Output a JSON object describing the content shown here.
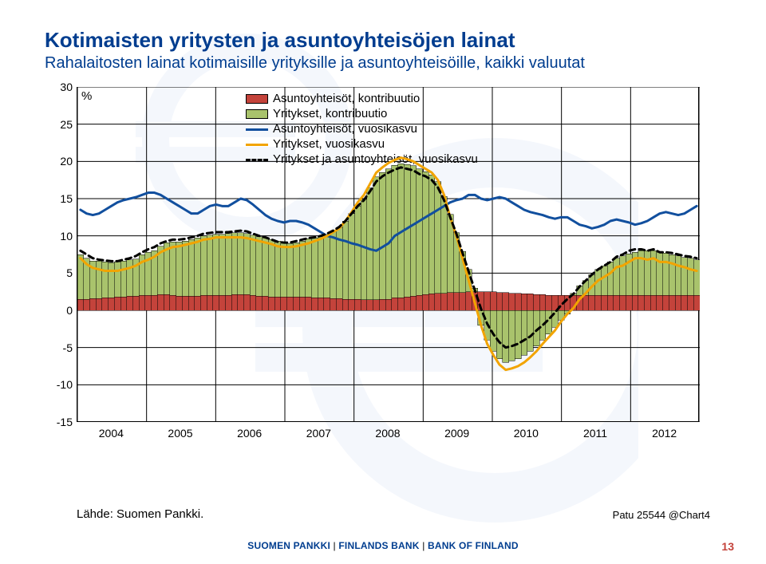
{
  "title": "Kotimaisten yritysten ja asuntoyhteisöjen lainat",
  "subtitle": "Rahalaitosten lainat kotimaisille yrityksille ja asuntoyhteisöille, kaikki valuutat",
  "unit": "%",
  "chart": {
    "type": "combo-stackedbar-line",
    "ylim": [
      -15,
      30
    ],
    "ytick_step": 5,
    "xlabels": [
      "2004",
      "2005",
      "2006",
      "2007",
      "2008",
      "2009",
      "2010",
      "2011",
      "2012"
    ],
    "background_color": "#ffffff",
    "grid_color": "#000000",
    "series_bar": [
      {
        "name": "Asuntoyhteisöt, kontribuutio",
        "color": "#c4433b",
        "border": "#000000",
        "values": [
          1.5,
          1.5,
          1.6,
          1.6,
          1.7,
          1.7,
          1.8,
          1.8,
          1.9,
          1.9,
          2.0,
          2.0,
          2.0,
          2.1,
          2.1,
          2.0,
          1.9,
          1.9,
          1.9,
          1.9,
          2.0,
          2.0,
          2.0,
          2.0,
          2.0,
          2.1,
          2.1,
          2.1,
          2.0,
          1.9,
          1.9,
          1.8,
          1.8,
          1.8,
          1.8,
          1.8,
          1.8,
          1.8,
          1.7,
          1.7,
          1.7,
          1.6,
          1.6,
          1.5,
          1.5,
          1.5,
          1.4,
          1.4,
          1.4,
          1.5,
          1.5,
          1.7,
          1.7,
          1.8,
          1.9,
          2.0,
          2.1,
          2.2,
          2.3,
          2.3,
          2.4,
          2.4,
          2.4,
          2.5,
          2.5,
          2.5,
          2.5,
          2.5,
          2.4,
          2.4,
          2.3,
          2.3,
          2.2,
          2.2,
          2.1,
          2.1,
          2.0,
          2.0,
          2.0,
          2.0,
          2.0,
          2.0,
          2.0,
          2.0,
          2.0,
          2.0,
          2.0,
          2.0,
          2.0,
          2.0,
          2.0,
          2.0,
          2.0,
          2.0,
          2.0,
          2.0,
          2.0,
          2.0,
          2.0,
          2.0,
          2.0
        ]
      },
      {
        "name": "Yritykset, kontribuutio",
        "color": "#a9c36c",
        "border": "#000000",
        "values": [
          6.0,
          5.5,
          5.0,
          5.0,
          4.8,
          4.7,
          4.7,
          4.8,
          4.9,
          5.0,
          5.5,
          5.8,
          6.0,
          6.5,
          7.0,
          7.2,
          7.3,
          7.4,
          7.6,
          7.8,
          8.0,
          8.1,
          8.2,
          8.2,
          8.3,
          8.3,
          8.3,
          8.2,
          8.1,
          8.0,
          7.8,
          7.7,
          7.5,
          7.3,
          7.2,
          7.3,
          7.5,
          7.8,
          8.0,
          8.2,
          8.5,
          9.0,
          9.5,
          10.5,
          11.5,
          12.5,
          13.5,
          15.0,
          16.5,
          17.0,
          17.5,
          17.8,
          18.0,
          17.8,
          17.5,
          17.0,
          16.5,
          16.0,
          15.0,
          13.0,
          10.5,
          8.0,
          5.5,
          3.0,
          0.5,
          -2.0,
          -4.0,
          -5.5,
          -6.5,
          -7.0,
          -6.8,
          -6.5,
          -6.0,
          -5.5,
          -4.8,
          -4.0,
          -3.2,
          -2.3,
          -1.3,
          -0.5,
          0.3,
          1.3,
          2.0,
          2.8,
          3.5,
          4.0,
          4.5,
          5.0,
          5.3,
          5.6,
          5.8,
          6.0,
          6.0,
          6.0,
          5.8,
          5.7,
          5.5,
          5.3,
          5.1,
          5.0,
          4.8
        ]
      }
    ],
    "series_line": [
      {
        "name": "Asuntoyhteisöt, vuosikasvu",
        "color": "#114f9e",
        "width": 3,
        "dash": "",
        "values": [
          13.5,
          13.0,
          12.8,
          13.0,
          13.5,
          14.0,
          14.5,
          14.8,
          15.0,
          15.2,
          15.5,
          15.8,
          15.8,
          15.5,
          15.0,
          14.5,
          14.0,
          13.5,
          13.0,
          13.0,
          13.5,
          14.0,
          14.2,
          14.0,
          14.0,
          14.5,
          15.0,
          14.8,
          14.2,
          13.5,
          12.8,
          12.3,
          12.0,
          11.8,
          12.0,
          12.0,
          11.8,
          11.5,
          11.0,
          10.5,
          10.0,
          9.8,
          9.5,
          9.3,
          9.0,
          8.8,
          8.5,
          8.2,
          8.0,
          8.5,
          9.0,
          10.0,
          10.5,
          11.0,
          11.5,
          12.0,
          12.5,
          13.0,
          13.5,
          14.0,
          14.5,
          14.8,
          15.0,
          15.5,
          15.5,
          15.0,
          14.8,
          15.0,
          15.2,
          15.0,
          14.5,
          14.0,
          13.5,
          13.2,
          13.0,
          12.8,
          12.5,
          12.3,
          12.5,
          12.5,
          12.0,
          11.5,
          11.3,
          11.0,
          11.2,
          11.5,
          12.0,
          12.2,
          12.0,
          11.8,
          11.5,
          11.7,
          12.0,
          12.5,
          13.0,
          13.2,
          13.0,
          12.8,
          13.0,
          13.5,
          14.0
        ]
      },
      {
        "name": "Yritykset, vuosikasvu",
        "color": "#f2a400",
        "width": 3.5,
        "dash": "",
        "values": [
          7.0,
          6.2,
          5.7,
          5.5,
          5.3,
          5.3,
          5.3,
          5.5,
          5.7,
          6.0,
          6.5,
          6.8,
          7.2,
          7.8,
          8.2,
          8.5,
          8.6,
          8.8,
          9.0,
          9.2,
          9.5,
          9.6,
          9.8,
          9.8,
          9.8,
          9.8,
          9.8,
          9.7,
          9.5,
          9.3,
          9.1,
          8.9,
          8.6,
          8.5,
          8.5,
          8.6,
          8.8,
          9.0,
          9.3,
          9.6,
          10.0,
          10.5,
          11.0,
          12.0,
          13.2,
          14.5,
          15.5,
          17.0,
          18.5,
          19.2,
          19.8,
          20.2,
          20.5,
          20.3,
          20.0,
          19.5,
          19.0,
          18.5,
          17.5,
          15.5,
          12.5,
          10.0,
          7.0,
          4.0,
          1.0,
          -2.0,
          -4.5,
          -6.0,
          -7.3,
          -8.0,
          -7.8,
          -7.5,
          -7.0,
          -6.3,
          -5.5,
          -4.5,
          -3.6,
          -2.7,
          -1.5,
          -0.5,
          0.3,
          1.5,
          2.3,
          3.2,
          4.0,
          4.5,
          5.0,
          5.8,
          6.0,
          6.5,
          7.0,
          7.0,
          6.8,
          7.0,
          6.5,
          6.5,
          6.3,
          6.0,
          5.8,
          5.5,
          5.3
        ]
      },
      {
        "name": "Yritykset ja asuntoyhteisöt, vuosikasvu",
        "color": "#000000",
        "width": 2.5,
        "dash": "7,5",
        "values": [
          8.0,
          7.5,
          7.0,
          6.8,
          6.7,
          6.6,
          6.6,
          6.8,
          7.0,
          7.3,
          7.8,
          8.2,
          8.5,
          9.0,
          9.3,
          9.5,
          9.5,
          9.6,
          9.8,
          10.0,
          10.3,
          10.4,
          10.5,
          10.5,
          10.5,
          10.6,
          10.7,
          10.6,
          10.3,
          10.0,
          9.8,
          9.5,
          9.2,
          9.1,
          9.1,
          9.3,
          9.5,
          9.7,
          9.8,
          10.0,
          10.3,
          10.7,
          11.2,
          12.0,
          13.0,
          14.0,
          14.8,
          16.0,
          17.3,
          18.0,
          18.5,
          18.9,
          19.2,
          19.0,
          18.8,
          18.3,
          18.0,
          17.5,
          16.5,
          14.8,
          12.5,
          10.3,
          7.7,
          5.2,
          2.7,
          0.2,
          -1.8,
          -3.2,
          -4.3,
          -5.0,
          -4.8,
          -4.5,
          -4.0,
          -3.5,
          -2.7,
          -2.0,
          -1.2,
          -0.3,
          0.7,
          1.5,
          2.2,
          3.2,
          4.0,
          4.8,
          5.5,
          6.0,
          6.5,
          7.2,
          7.5,
          8.0,
          8.2,
          8.2,
          8.0,
          8.2,
          7.8,
          7.8,
          7.7,
          7.5,
          7.3,
          7.2,
          7.0
        ]
      }
    ],
    "legend": [
      {
        "type": "bar",
        "color": "#c4433b",
        "label": "Asuntoyhteisöt, kontribuutio"
      },
      {
        "type": "bar",
        "color": "#a9c36c",
        "label": "Yritykset, kontribuutio"
      },
      {
        "type": "line",
        "color": "#114f9e",
        "dash": "",
        "label": "Asuntoyhteisöt, vuosikasvu"
      },
      {
        "type": "line",
        "color": "#f2a400",
        "dash": "",
        "label": "Yritykset, vuosikasvu"
      },
      {
        "type": "line",
        "color": "#000000",
        "dash": "6,4",
        "label": "Yritykset ja asuntoyhteisöt, vuosikasvu"
      }
    ],
    "legend_fontsize": 15
  },
  "source": "Lähde: Suomen Pankki.",
  "chart_ref": "Patu 25544 @Chart4",
  "footer_parts": [
    "SUOMEN PANKKI",
    " | ",
    "FINLANDS BANK",
    " | ",
    "BANK OF FINLAND"
  ],
  "page_number": "13"
}
